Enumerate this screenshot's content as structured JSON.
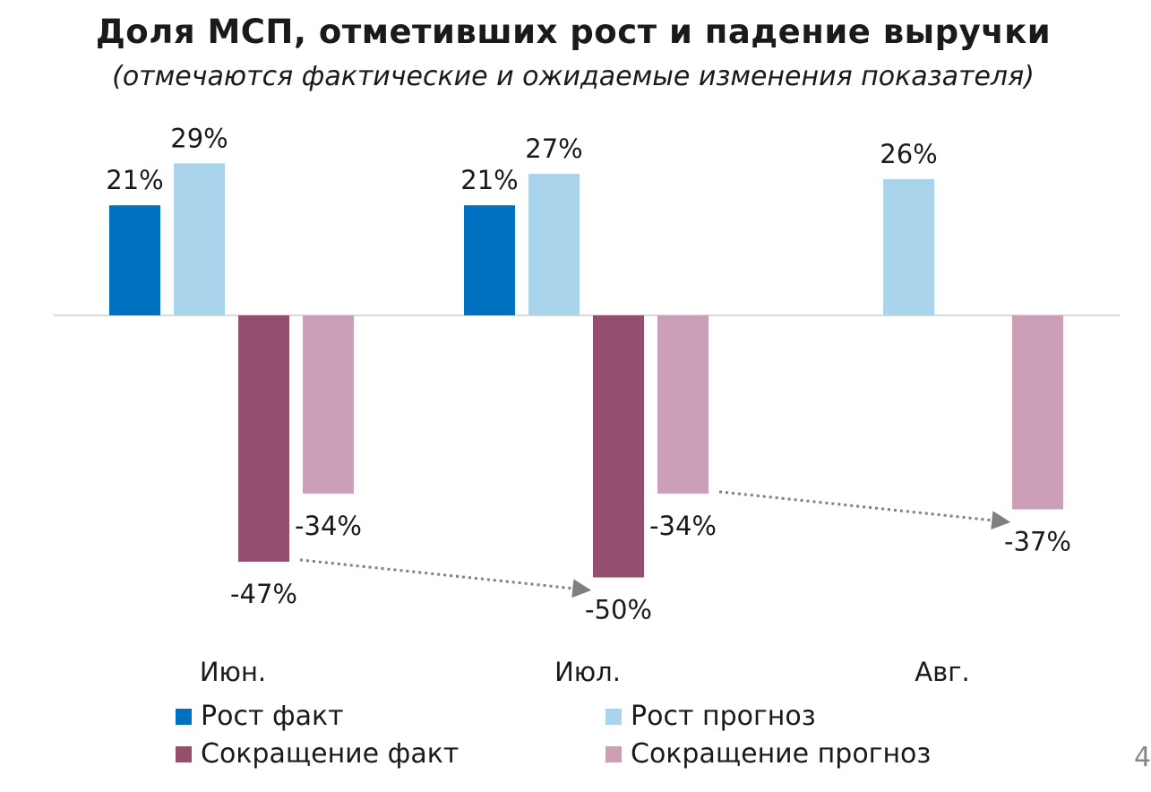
{
  "chart_data": {
    "type": "bar",
    "title": "Доля МСП, отметивших рост и падение выручки",
    "subtitle": "(отмечаются фактические и ожидаемые изменения показателя)",
    "categories": [
      "Июн.",
      "Июл.",
      "Авг."
    ],
    "series": [
      {
        "name": "Рост факт",
        "color": "#0070c0",
        "values": [
          21,
          21,
          null
        ],
        "labels": [
          "21%",
          "21%",
          ""
        ]
      },
      {
        "name": "Рост прогноз",
        "color": "#a9d4ec",
        "values": [
          29,
          27,
          26
        ],
        "labels": [
          "29%",
          "27%",
          "26%"
        ]
      },
      {
        "name": "Сокращение факт",
        "color": "#944e6e",
        "values": [
          -47,
          -50,
          null
        ],
        "labels": [
          "-47%",
          "-50%",
          ""
        ]
      },
      {
        "name": "Сокращение прогноз",
        "color": "#cc9fb7",
        "values": [
          -34,
          -34,
          -37
        ],
        "labels": [
          "-34%",
          "-34%",
          "-37%"
        ]
      }
    ],
    "ylim": [
      -55,
      35
    ],
    "grid": false,
    "legend": "bottom",
    "annotations": [
      {
        "type": "dotted-arrow",
        "from": {
          "category": "Июн.",
          "series": "Сокращение факт"
        },
        "to": {
          "category": "Июл.",
          "series": "Сокращение факт"
        }
      },
      {
        "type": "dotted-arrow",
        "from": {
          "category": "Июл.",
          "series": "Сокращение прогноз"
        },
        "to": {
          "category": "Авг.",
          "series": "Сокращение прогноз"
        }
      }
    ]
  },
  "page_number": "4"
}
